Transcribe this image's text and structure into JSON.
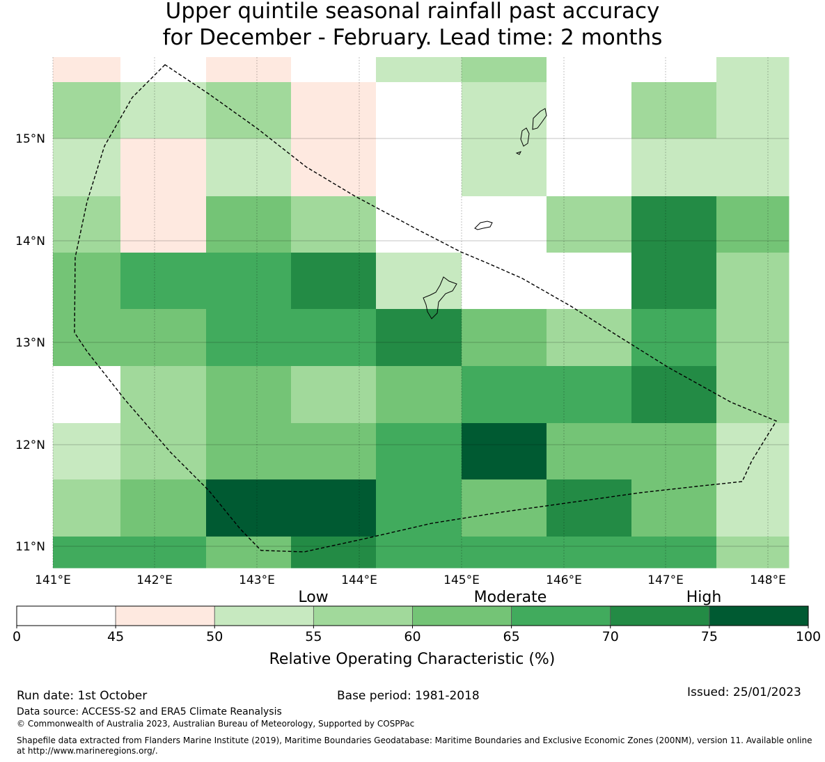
{
  "title_line1": "Upper quintile seasonal rainfall past accuracy",
  "title_line2": "for December - February. Lead time: 2 months",
  "map": {
    "lon_labels": [
      "141°E",
      "142°E",
      "143°E",
      "144°E",
      "145°E",
      "146°E",
      "147°E",
      "148°E"
    ],
    "lat_labels": [
      "15°N",
      "14°N",
      "13°N",
      "12°N",
      "11°N"
    ],
    "cell_values_rows_north_to_south": [
      [
        47,
        0,
        47,
        0,
        52,
        57,
        0,
        0,
        52
      ],
      [
        57,
        52,
        57,
        47,
        0,
        52,
        0,
        57,
        52
      ],
      [
        52,
        47,
        52,
        47,
        0,
        52,
        0,
        52,
        52
      ],
      [
        57,
        47,
        62,
        57,
        0,
        0,
        57,
        72,
        62
      ],
      [
        62,
        67,
        67,
        72,
        52,
        0,
        0,
        72,
        57
      ],
      [
        62,
        62,
        67,
        67,
        72,
        62,
        57,
        67,
        57
      ],
      [
        0,
        57,
        62,
        57,
        62,
        67,
        67,
        72,
        57
      ],
      [
        52,
        57,
        62,
        62,
        67,
        77,
        62,
        62,
        52
      ],
      [
        57,
        62,
        77,
        77,
        67,
        62,
        72,
        62,
        52
      ],
      [
        67,
        67,
        62,
        72,
        67,
        67,
        67,
        67,
        57
      ]
    ]
  },
  "colorbar": {
    "category_labels": [
      "Low",
      "Moderate",
      "High"
    ],
    "tick_labels": [
      "0",
      "45",
      "50",
      "55",
      "60",
      "65",
      "70",
      "75",
      "100"
    ],
    "colors": [
      "#ffffff",
      "#fee9e0",
      "#c7e9c0",
      "#a1d99b",
      "#74c476",
      "#41ab5d",
      "#238b45",
      "#005a32"
    ],
    "label": "Relative Operating Characteristic (%)"
  },
  "footer": {
    "run_date": "Run date: 1st October",
    "base_period": "Base period: 1981-2018",
    "issued": "Issued: 25/01/2023",
    "data_source": "Data source: ACCESS-S2 and ERA5 Climate Reanalysis",
    "copyright": "© Commonwealth of Australia 2023, Australian Bureau of Meteorology, Supported by COSPPac",
    "shapefile_line1": "Shapefile data extracted from Flanders Marine Institute (2019), Maritime Boundaries Geodatabase: Maritime Boundaries and Exclusive Economic Zones (200NM), version 11. Available online",
    "shapefile_line2": "at http://www.marineregions.org/."
  }
}
